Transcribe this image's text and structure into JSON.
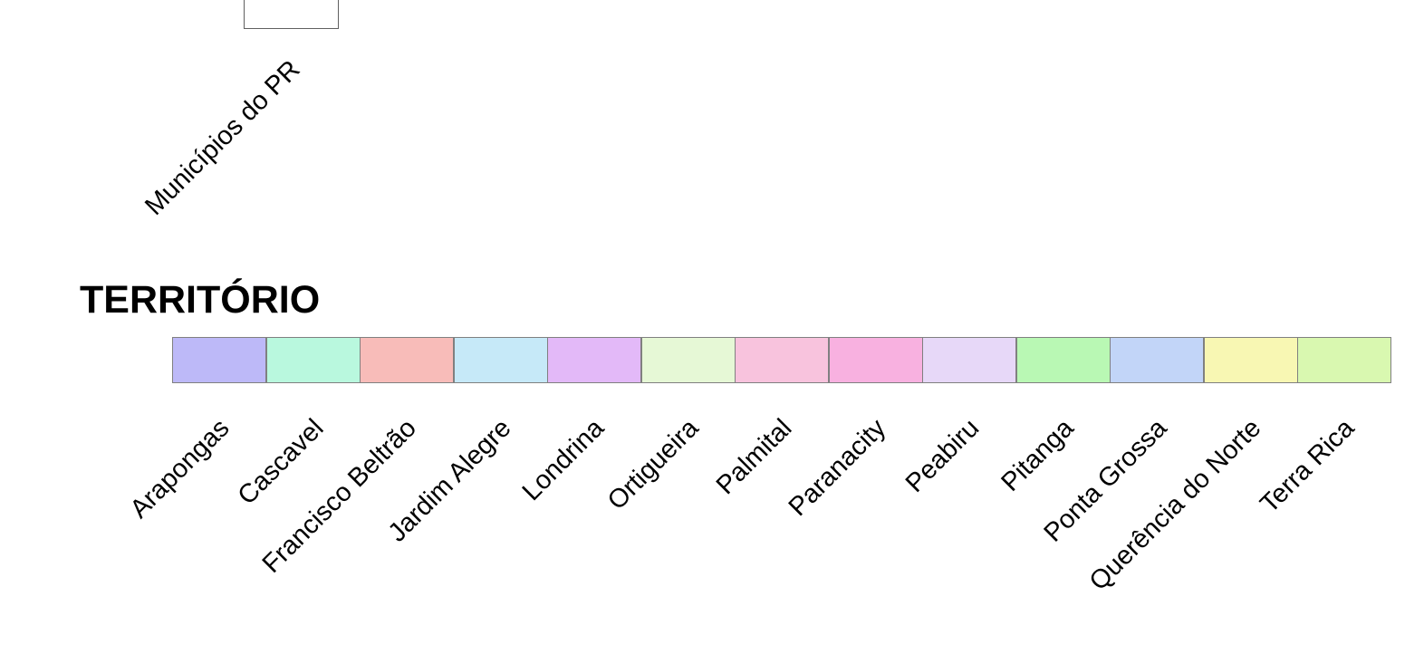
{
  "layer_legend": {
    "group_label": "Municípios do PR",
    "group_swatch_color": "#ffffff"
  },
  "territory_legend": {
    "title": "TERRITÓRIO",
    "items": [
      {
        "label": "Arapongas",
        "color": "#bdb9f8"
      },
      {
        "label": "Cascavel",
        "color": "#b9f8de"
      },
      {
        "label": "Francisco Beltrão",
        "color": "#f8bcb9"
      },
      {
        "label": "Jardim Alegre",
        "color": "#c6e9f8"
      },
      {
        "label": "Londrina",
        "color": "#e3b9f8"
      },
      {
        "label": "Ortigueira",
        "color": "#e6f8d6"
      },
      {
        "label": "Palmital",
        "color": "#f8c3dd"
      },
      {
        "label": "Paranacity",
        "color": "#f8b1e0"
      },
      {
        "label": "Peabiru",
        "color": "#e7d8f8"
      },
      {
        "label": "Pitanga",
        "color": "#b9f8b4"
      },
      {
        "label": "Ponta Grossa",
        "color": "#c2d5f8"
      },
      {
        "label": "Querência do Norte",
        "color": "#f8f7b3"
      },
      {
        "label": "Terra Rica",
        "color": "#d9f8b0"
      }
    ]
  }
}
